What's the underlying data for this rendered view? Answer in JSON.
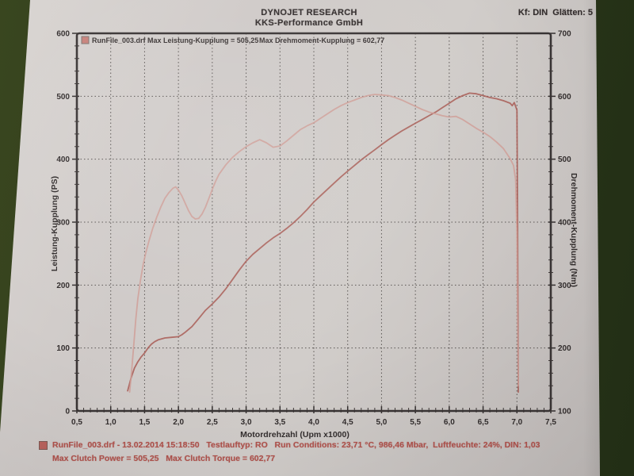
{
  "header": {
    "title": "DYNOJET RESEARCH",
    "subtitle": "KKS-Performance GmbH",
    "settings": "Kf: DIN  Glätten: 5"
  },
  "legend": {
    "swatch_icon": "run-file-swatch",
    "run_label": "RunFile_003.drf Max Leistung-Kupplung = 505,25",
    "torque_label": "Max Drehmoment-Kupplung = 602,77"
  },
  "footer": {
    "file_icon": "run-file-icon",
    "line1": "RunFile_003.drf - 13.02.2014 15:18:50   Testlauftyp: RO   Run Conditions: 23,71 °C, 986,46 Mbar,  Luftfeuchte: 24%, DIN: 1,03",
    "line2": "Max Clutch Power = 505,25   Max Clutch Torque = 602,77"
  },
  "colors": {
    "table_background": "#2e3b1c",
    "paper": "#cfcac8",
    "power_curve": "#a85a53",
    "torque_curve": "#cf9d96",
    "footer_text": "#b0524c"
  },
  "chart_data": {
    "type": "line",
    "title": "",
    "xlabel": "Motordrehzahl (Upm x1000)",
    "x_range": [
      0.5,
      7.5
    ],
    "x_tick_step": 0.5,
    "x_minor_step": 0.1,
    "x_tick_labels": [
      "0,5",
      "1,0",
      "1,5",
      "2,0",
      "2,5",
      "3,0",
      "3,5",
      "4,0",
      "4,5",
      "5,0",
      "5,5",
      "6,0",
      "6,5",
      "7,0",
      "7,5"
    ],
    "grid": true,
    "legend_position": "top-left-inside",
    "left_axis": {
      "label": "Leistung-Kupplung (PS)",
      "range": [
        0,
        600
      ],
      "tick_step": 100,
      "minor_step": 20,
      "tick_labels": [
        "0",
        "100",
        "200",
        "300",
        "400",
        "500",
        "600"
      ]
    },
    "right_axis": {
      "label": "Drehmoment-Kupplung (Nm)",
      "range": [
        100,
        700
      ],
      "tick_step": 100,
      "minor_step": 20,
      "tick_labels": [
        "100",
        "200",
        "300",
        "400",
        "500",
        "600",
        "700"
      ]
    },
    "max_power_ps": 505.25,
    "max_torque_nm": 602.77,
    "series": [
      {
        "name": "Leistung-Kupplung (PS)",
        "axis": "left",
        "color": "#a85a53",
        "points": [
          [
            1.25,
            32
          ],
          [
            1.3,
            52
          ],
          [
            1.35,
            68
          ],
          [
            1.4,
            78
          ],
          [
            1.45,
            86
          ],
          [
            1.5,
            92
          ],
          [
            1.55,
            100
          ],
          [
            1.6,
            106
          ],
          [
            1.65,
            110
          ],
          [
            1.7,
            113
          ],
          [
            1.8,
            116
          ],
          [
            1.9,
            117
          ],
          [
            2.0,
            118
          ],
          [
            2.05,
            121
          ],
          [
            2.1,
            125
          ],
          [
            2.2,
            134
          ],
          [
            2.3,
            147
          ],
          [
            2.4,
            160
          ],
          [
            2.5,
            170
          ],
          [
            2.6,
            181
          ],
          [
            2.7,
            194
          ],
          [
            2.8,
            209
          ],
          [
            2.9,
            224
          ],
          [
            3.0,
            238
          ],
          [
            3.1,
            249
          ],
          [
            3.2,
            258
          ],
          [
            3.3,
            267
          ],
          [
            3.4,
            275
          ],
          [
            3.5,
            282
          ],
          [
            3.6,
            290
          ],
          [
            3.7,
            299
          ],
          [
            3.8,
            309
          ],
          [
            3.9,
            320
          ],
          [
            4.0,
            332
          ],
          [
            4.1,
            342
          ],
          [
            4.2,
            352
          ],
          [
            4.3,
            362
          ],
          [
            4.4,
            372
          ],
          [
            4.5,
            381
          ],
          [
            4.6,
            390
          ],
          [
            4.7,
            399
          ],
          [
            4.8,
            407
          ],
          [
            4.9,
            415
          ],
          [
            5.0,
            423
          ],
          [
            5.1,
            431
          ],
          [
            5.2,
            438
          ],
          [
            5.3,
            445
          ],
          [
            5.4,
            451
          ],
          [
            5.5,
            457
          ],
          [
            5.6,
            463
          ],
          [
            5.7,
            469
          ],
          [
            5.8,
            475
          ],
          [
            5.9,
            482
          ],
          [
            6.0,
            489
          ],
          [
            6.1,
            496
          ],
          [
            6.2,
            501
          ],
          [
            6.3,
            505
          ],
          [
            6.4,
            504
          ],
          [
            6.5,
            501
          ],
          [
            6.6,
            498
          ],
          [
            6.7,
            496
          ],
          [
            6.8,
            493
          ],
          [
            6.9,
            489
          ],
          [
            6.93,
            485
          ],
          [
            6.96,
            490
          ],
          [
            7.0,
            478
          ],
          [
            7.01,
            300
          ],
          [
            7.02,
            30
          ]
        ]
      },
      {
        "name": "Drehmoment-Kupplung (Nm)",
        "axis": "right",
        "color": "#cf9d96",
        "points": [
          [
            1.28,
            130
          ],
          [
            1.31,
            165
          ],
          [
            1.34,
            205
          ],
          [
            1.37,
            245
          ],
          [
            1.4,
            278
          ],
          [
            1.44,
            308
          ],
          [
            1.48,
            333
          ],
          [
            1.52,
            352
          ],
          [
            1.57,
            372
          ],
          [
            1.62,
            390
          ],
          [
            1.68,
            408
          ],
          [
            1.74,
            424
          ],
          [
            1.8,
            438
          ],
          [
            1.86,
            447
          ],
          [
            1.92,
            454
          ],
          [
            1.96,
            456
          ],
          [
            2.0,
            451
          ],
          [
            2.05,
            442
          ],
          [
            2.1,
            430
          ],
          [
            2.15,
            418
          ],
          [
            2.2,
            409
          ],
          [
            2.25,
            405
          ],
          [
            2.3,
            406
          ],
          [
            2.35,
            413
          ],
          [
            2.4,
            424
          ],
          [
            2.45,
            438
          ],
          [
            2.5,
            452
          ],
          [
            2.55,
            465
          ],
          [
            2.6,
            476
          ],
          [
            2.7,
            491
          ],
          [
            2.8,
            503
          ],
          [
            2.9,
            512
          ],
          [
            3.0,
            520
          ],
          [
            3.1,
            526
          ],
          [
            3.2,
            531
          ],
          [
            3.3,
            526
          ],
          [
            3.4,
            519
          ],
          [
            3.5,
            521
          ],
          [
            3.6,
            529
          ],
          [
            3.7,
            538
          ],
          [
            3.8,
            547
          ],
          [
            3.9,
            553
          ],
          [
            4.0,
            558
          ],
          [
            4.1,
            565
          ],
          [
            4.2,
            572
          ],
          [
            4.3,
            579
          ],
          [
            4.4,
            585
          ],
          [
            4.5,
            590
          ],
          [
            4.6,
            594
          ],
          [
            4.7,
            598
          ],
          [
            4.8,
            601
          ],
          [
            4.9,
            603
          ],
          [
            5.0,
            602
          ],
          [
            5.1,
            601
          ],
          [
            5.2,
            598
          ],
          [
            5.3,
            594
          ],
          [
            5.4,
            589
          ],
          [
            5.5,
            584
          ],
          [
            5.6,
            579
          ],
          [
            5.7,
            575
          ],
          [
            5.8,
            572
          ],
          [
            5.9,
            569
          ],
          [
            6.0,
            567
          ],
          [
            6.1,
            568
          ],
          [
            6.2,
            563
          ],
          [
            6.3,
            556
          ],
          [
            6.4,
            549
          ],
          [
            6.5,
            543
          ],
          [
            6.6,
            536
          ],
          [
            6.7,
            527
          ],
          [
            6.8,
            517
          ],
          [
            6.9,
            501
          ],
          [
            6.95,
            490
          ],
          [
            6.98,
            468
          ],
          [
            7.0,
            380
          ],
          [
            7.01,
            240
          ],
          [
            7.02,
            140
          ]
        ]
      }
    ]
  }
}
